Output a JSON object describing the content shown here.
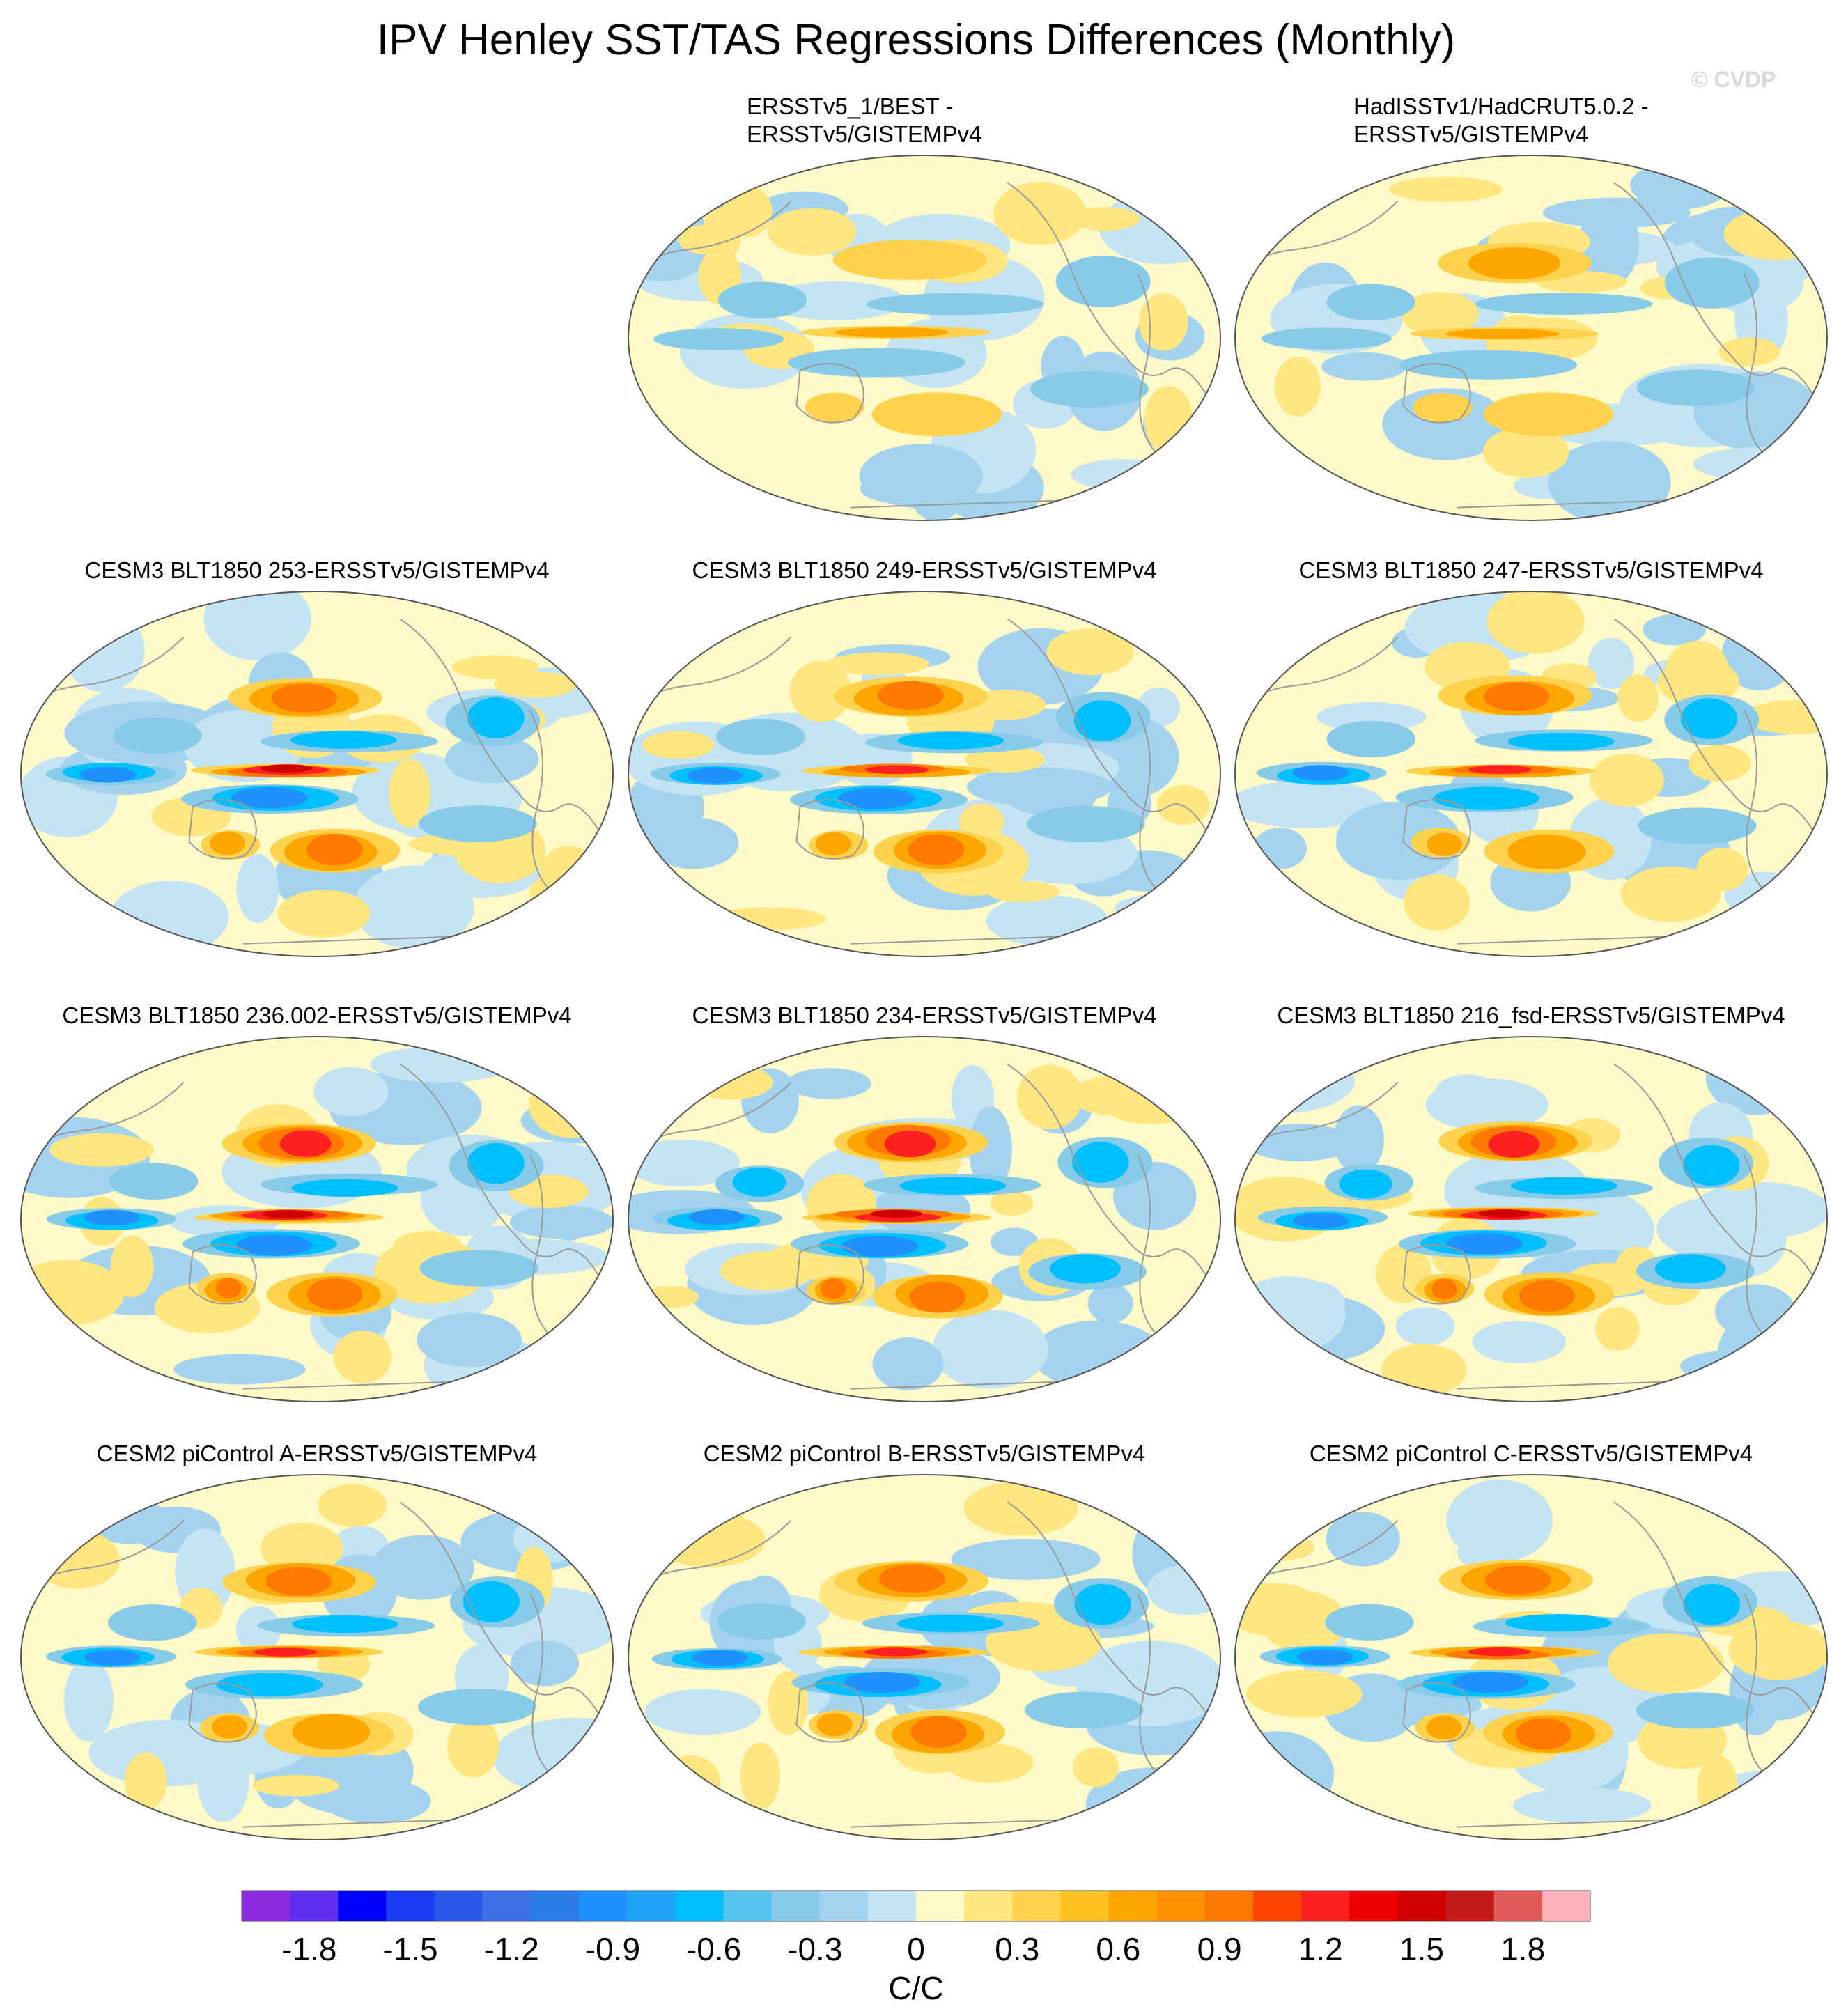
{
  "figure": {
    "title": "IPV Henley SST/TAS Regressions Differences (Monthly)",
    "watermark": "© CVDP"
  },
  "colors": {
    "land_outline": "#9a9a9a",
    "map_border": "#555555"
  },
  "panels": [
    {
      "title_lines": [
        "ERSSTv5_1/BEST -",
        "ERSSTv5/GISTEMPv4"
      ]
    },
    {
      "title_lines": [
        "HadISSTv1/HadCRUT5.0.2 -",
        "ERSSTv5/GISTEMPv4"
      ]
    },
    {
      "title_lines": [
        "CESM3 BLT1850 253-ERSSTv5/GISTEMPv4"
      ]
    },
    {
      "title_lines": [
        "CESM3 BLT1850 249-ERSSTv5/GISTEMPv4"
      ]
    },
    {
      "title_lines": [
        "CESM3 BLT1850 247-ERSSTv5/GISTEMPv4"
      ]
    },
    {
      "title_lines": [
        "CESM3 BLT1850 236.002-ERSSTv5/GISTEMPv4"
      ]
    },
    {
      "title_lines": [
        "CESM3 BLT1850 234-ERSSTv5/GISTEMPv4"
      ]
    },
    {
      "title_lines": [
        "CESM3 BLT1850 216_fsd-ERSSTv5/GISTEMPv4"
      ]
    },
    {
      "title_lines": [
        "CESM2 piControl A-ERSSTv5/GISTEMPv4"
      ]
    },
    {
      "title_lines": [
        "CESM2 piControl B-ERSSTv5/GISTEMPv4"
      ]
    },
    {
      "title_lines": [
        "CESM2 piControl C-ERSSTv5/GISTEMPv4"
      ]
    }
  ],
  "chart_data": {
    "type": "heatmap",
    "projection": "Robinson, Pacific-centred",
    "n_panels": 11,
    "grid_layout": "4 rows x 3 columns, top-left empty",
    "colorbar": {
      "units": "C/C",
      "levels": [
        -2.0,
        -1.9,
        -1.8,
        -1.7,
        -1.6,
        -1.5,
        -1.4,
        -1.3,
        -1.2,
        -1.1,
        -1.0,
        -0.9,
        -0.8,
        -0.7,
        -0.6,
        -0.5,
        -0.4,
        -0.3,
        -0.2,
        -0.1,
        0,
        0.1,
        0.2,
        0.3,
        0.4,
        0.5,
        0.6,
        0.7,
        0.8,
        0.9,
        1.0,
        1.1,
        1.2,
        1.3,
        1.4,
        1.5,
        1.6,
        1.7,
        1.8,
        1.9,
        2.0
      ],
      "tick_labels": [
        "-1.8",
        "-1.5",
        "-1.2",
        "-0.9",
        "-0.6",
        "-0.3",
        "0",
        "0.3",
        "0.6",
        "0.9",
        "1.2",
        "1.5",
        "1.8"
      ],
      "tick_values": [
        -1.8,
        -1.5,
        -1.2,
        -0.9,
        -0.6,
        -0.3,
        0,
        0.3,
        0.6,
        0.9,
        1.2,
        1.5,
        1.8
      ],
      "value_range": [
        -2.0,
        2.0
      ],
      "bin_colors": [
        "#8a2be2",
        "#5f2ef0",
        "#0000ff",
        "#1a3cf2",
        "#2a58e8",
        "#3d6fe6",
        "#2a7de8",
        "#1e90ff",
        "#1fa2f5",
        "#00bfff",
        "#55c3f0",
        "#87cbe8",
        "#a3d3ef",
        "#c4e3f3",
        "#fffac8",
        "#ffe680",
        "#ffd24d",
        "#ffc020",
        "#ffa500",
        "#ff9000",
        "#ff7800",
        "#ff4500",
        "#ff2020",
        "#ee0000",
        "#d00000",
        "#c41a1a",
        "#e05a5a",
        "#ffb0b8"
      ]
    }
  }
}
